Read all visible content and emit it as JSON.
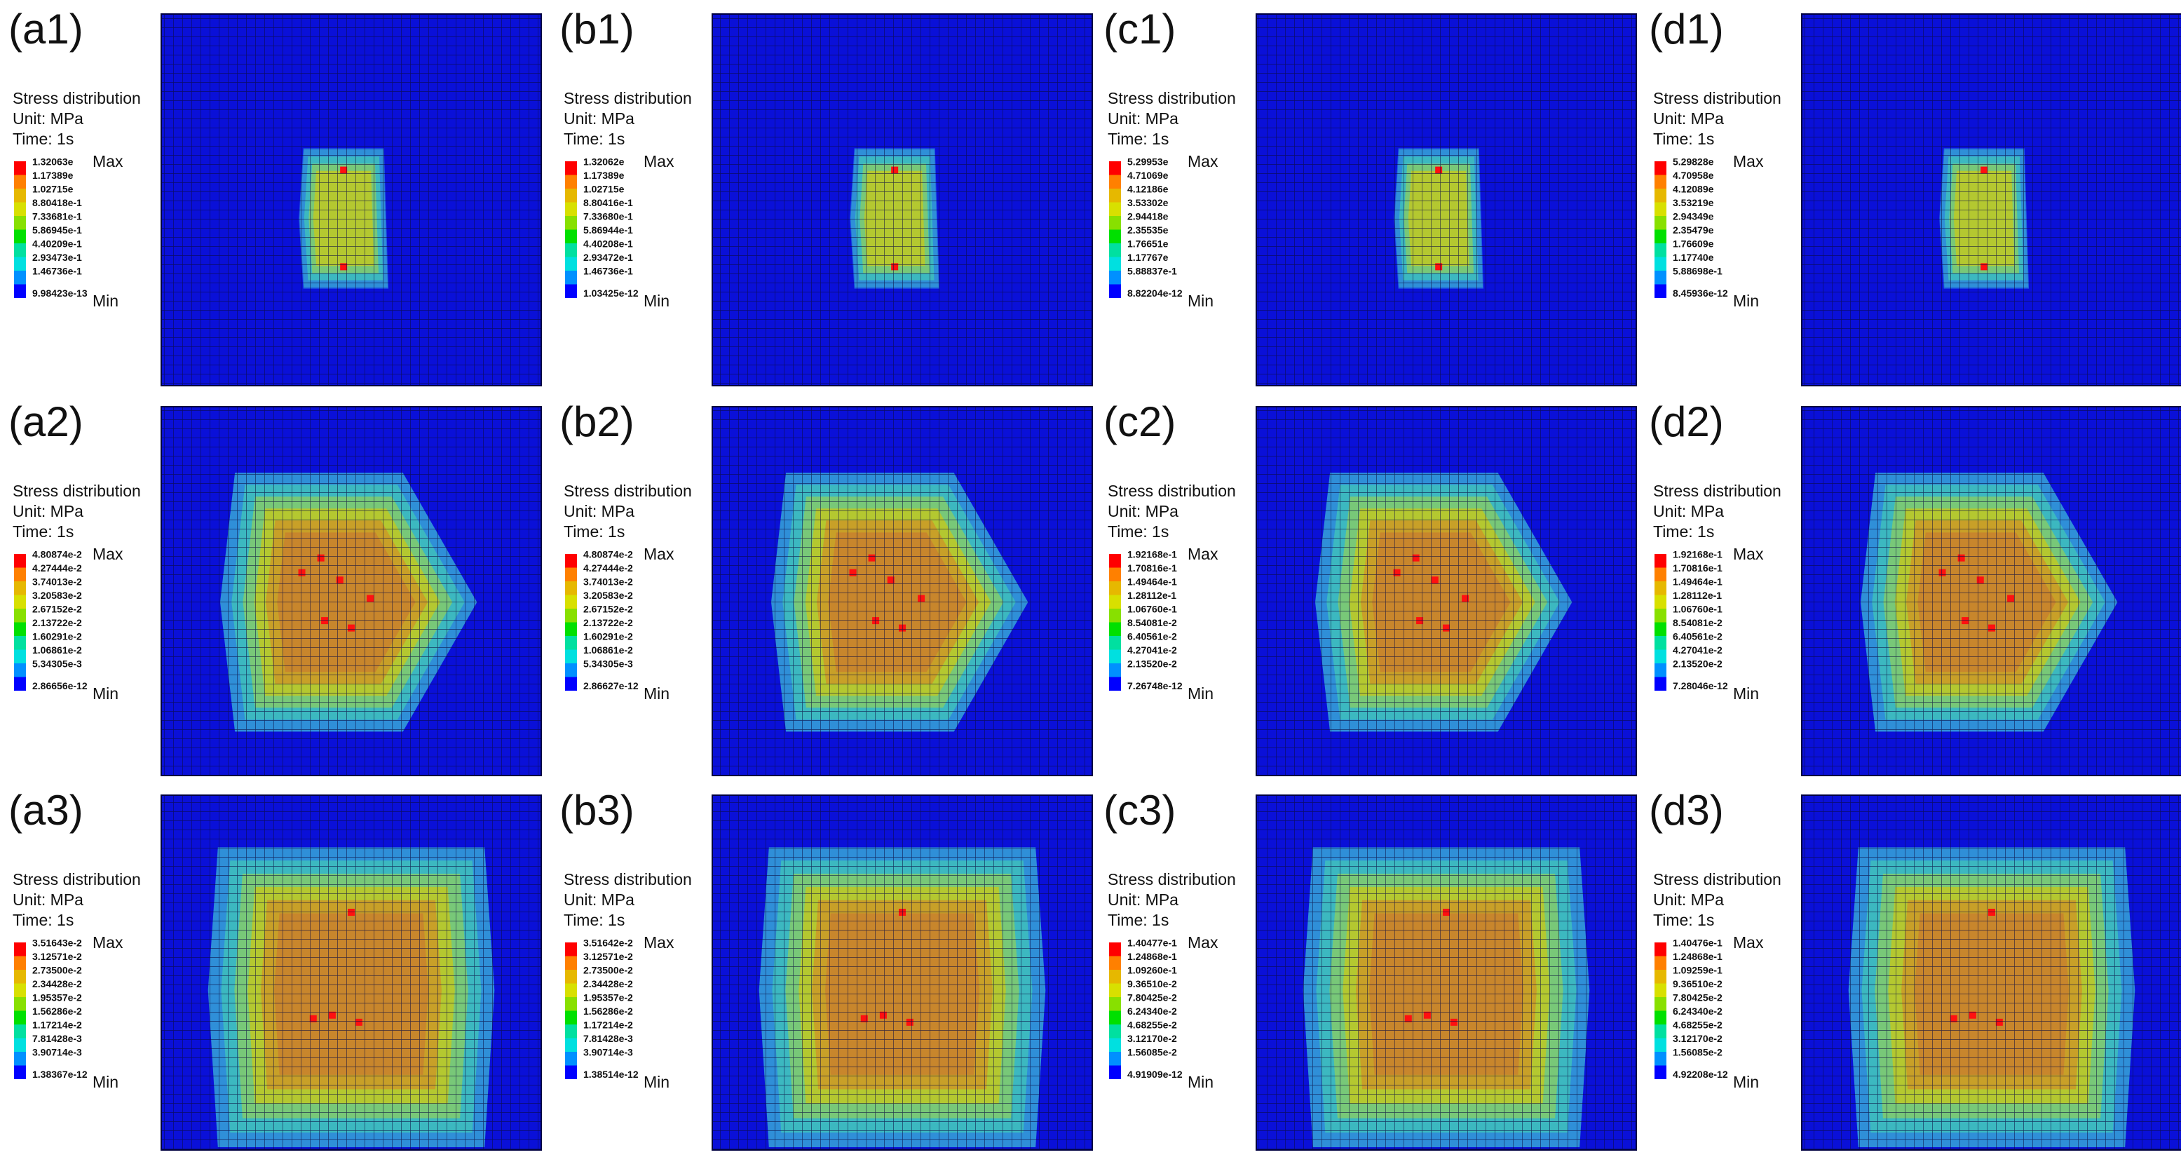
{
  "panels": [
    {
      "label": "(a1)",
      "legend": {
        "title": "Stress distribution",
        "unit": "Unit: MPa",
        "time": "Time: 1s",
        "max_label": "Max",
        "min_label": "Min",
        "values": [
          "1.32063e",
          "1.17389e",
          "1.02715e",
          "8.80418e-1",
          "7.33681e-1",
          "5.86945e-1",
          "4.40209e-1",
          "2.93473e-1",
          "1.46736e-1",
          "9.98423e-13"
        ]
      }
    },
    {
      "label": "(b1)",
      "legend": {
        "title": "Stress distribution",
        "unit": "Unit: MPa",
        "time": "Time: 1s",
        "max_label": "Max",
        "min_label": "Min",
        "values": [
          "1.32062e",
          "1.17389e",
          "1.02715e",
          "8.80416e-1",
          "7.33680e-1",
          "5.86944e-1",
          "4.40208e-1",
          "2.93472e-1",
          "1.46736e-1",
          "1.03425e-12"
        ]
      }
    },
    {
      "label": "(c1)",
      "legend": {
        "title": "Stress distribution",
        "unit": "Unit: MPa",
        "time": "Time: 1s",
        "max_label": "Max",
        "min_label": "Min",
        "values": [
          "5.29953e",
          "4.71069e",
          "4.12186e",
          "3.53302e",
          "2.94418e",
          "2.35535e",
          "1.76651e",
          "1.17767e",
          "5.88837e-1",
          "8.82204e-12"
        ]
      }
    },
    {
      "label": "(d1)",
      "legend": {
        "title": "Stress distribution",
        "unit": "Unit: MPa",
        "time": "Time: 1s",
        "max_label": "Max",
        "min_label": "Min",
        "values": [
          "5.29828e",
          "4.70958e",
          "4.12089e",
          "3.53219e",
          "2.94349e",
          "2.35479e",
          "1.76609e",
          "1.17740e",
          "5.88698e-1",
          "8.45936e-12"
        ]
      }
    },
    {
      "label": "(a2)",
      "legend": {
        "title": "Stress distribution",
        "unit": "Unit: MPa",
        "time": "Time: 1s",
        "max_label": "Max",
        "min_label": "Min",
        "values": [
          "4.80874e-2",
          "4.27444e-2",
          "3.74013e-2",
          "3.20583e-2",
          "2.67152e-2",
          "2.13722e-2",
          "1.60291e-2",
          "1.06861e-2",
          "5.34305e-3",
          "2.86656e-12"
        ]
      }
    },
    {
      "label": "(b2)",
      "legend": {
        "title": "Stress distribution",
        "unit": "Unit: MPa",
        "time": "Time: 1s",
        "max_label": "Max",
        "min_label": "Min",
        "values": [
          "4.80874e-2",
          "4.27444e-2",
          "3.74013e-2",
          "3.20583e-2",
          "2.67152e-2",
          "2.13722e-2",
          "1.60291e-2",
          "1.06861e-2",
          "5.34305e-3",
          "2.86627e-12"
        ]
      }
    },
    {
      "label": "(c2)",
      "legend": {
        "title": "Stress distribution",
        "unit": "Unit: MPa",
        "time": "Time: 1s",
        "max_label": "Max",
        "min_label": "Min",
        "values": [
          "1.92168e-1",
          "1.70816e-1",
          "1.49464e-1",
          "1.28112e-1",
          "1.06760e-1",
          "8.54081e-2",
          "6.40561e-2",
          "4.27041e-2",
          "2.13520e-2",
          "7.26748e-12"
        ]
      }
    },
    {
      "label": "(d2)",
      "legend": {
        "title": "Stress distribution",
        "unit": "Unit: MPa",
        "time": "Time: 1s",
        "max_label": "Max",
        "min_label": "Min",
        "values": [
          "1.92168e-1",
          "1.70816e-1",
          "1.49464e-1",
          "1.28112e-1",
          "1.06760e-1",
          "8.54081e-2",
          "6.40561e-2",
          "4.27041e-2",
          "2.13520e-2",
          "7.28046e-12"
        ]
      }
    },
    {
      "label": "(a3)",
      "legend": {
        "title": "Stress distribution",
        "unit": "Unit: MPa",
        "time": "Time: 1s",
        "max_label": "Max",
        "min_label": "Min",
        "values": [
          "3.51643e-2",
          "3.12571e-2",
          "2.73500e-2",
          "2.34428e-2",
          "1.95357e-2",
          "1.56286e-2",
          "1.17214e-2",
          "7.81428e-3",
          "3.90714e-3",
          "1.38367e-12"
        ]
      }
    },
    {
      "label": "(b3)",
      "legend": {
        "title": "Stress distribution",
        "unit": "Unit: MPa",
        "time": "Time: 1s",
        "max_label": "Max",
        "min_label": "Min",
        "values": [
          "3.51642e-2",
          "3.12571e-2",
          "2.73500e-2",
          "2.34428e-2",
          "1.95357e-2",
          "1.56286e-2",
          "1.17214e-2",
          "7.81428e-3",
          "3.90714e-3",
          "1.38514e-12"
        ]
      }
    },
    {
      "label": "(c3)",
      "legend": {
        "title": "Stress distribution",
        "unit": "Unit: MPa",
        "time": "Time: 1s",
        "max_label": "Max",
        "min_label": "Min",
        "values": [
          "1.40477e-1",
          "1.24868e-1",
          "1.09260e-1",
          "9.36510e-2",
          "7.80425e-2",
          "6.24340e-2",
          "4.68255e-2",
          "3.12170e-2",
          "1.56085e-2",
          "4.91909e-12"
        ]
      }
    },
    {
      "label": "(d3)",
      "legend": {
        "title": "Stress distribution",
        "unit": "Unit: MPa",
        "time": "Time: 1s",
        "max_label": "Max",
        "min_label": "Min",
        "values": [
          "1.40476e-1",
          "1.24868e-1",
          "1.09259e-1",
          "9.36510e-2",
          "7.80425e-2",
          "6.24340e-2",
          "4.68255e-2",
          "3.12170e-2",
          "1.56085e-2",
          "4.92208e-12"
        ]
      }
    }
  ]
}
